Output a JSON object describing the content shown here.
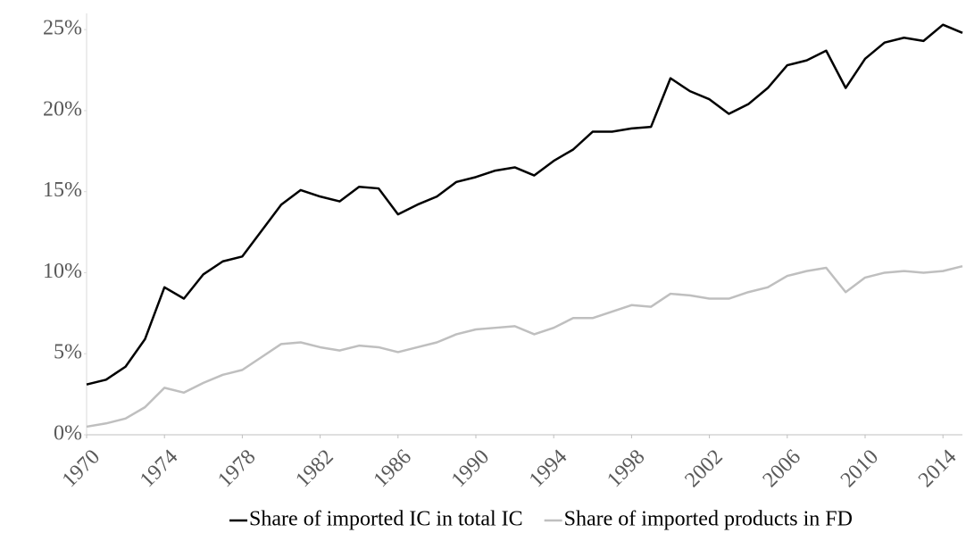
{
  "chart_data": {
    "type": "line",
    "x": [
      1970,
      1971,
      1972,
      1973,
      1974,
      1975,
      1976,
      1977,
      1978,
      1979,
      1980,
      1981,
      1982,
      1983,
      1984,
      1985,
      1986,
      1987,
      1988,
      1989,
      1990,
      1991,
      1992,
      1993,
      1994,
      1995,
      1996,
      1997,
      1998,
      1999,
      2000,
      2001,
      2002,
      2003,
      2004,
      2005,
      2006,
      2007,
      2008,
      2009,
      2010,
      2011,
      2012,
      2013,
      2014,
      2015
    ],
    "series": [
      {
        "name": "Share of imported IC in total IC",
        "color": "#000000",
        "values": [
          3.1,
          3.4,
          4.2,
          5.9,
          9.1,
          8.4,
          9.9,
          10.7,
          11.0,
          12.6,
          14.2,
          15.1,
          14.7,
          14.4,
          15.3,
          15.2,
          13.6,
          14.2,
          14.7,
          15.6,
          15.9,
          16.3,
          16.5,
          16.0,
          16.9,
          17.6,
          18.7,
          18.7,
          18.9,
          19.0,
          22.0,
          21.2,
          20.7,
          19.8,
          20.4,
          21.4,
          22.8,
          23.1,
          23.7,
          21.4,
          23.2,
          24.2,
          24.5,
          24.3,
          25.3,
          24.8
        ]
      },
      {
        "name": "Share of imported products in FD",
        "color": "#bfbfbf",
        "values": [
          0.5,
          0.7,
          1.0,
          1.7,
          2.9,
          2.6,
          3.2,
          3.7,
          4.0,
          4.8,
          5.6,
          5.7,
          5.4,
          5.2,
          5.5,
          5.4,
          5.1,
          5.4,
          5.7,
          6.2,
          6.5,
          6.6,
          6.7,
          6.2,
          6.6,
          7.2,
          7.2,
          7.6,
          8.0,
          7.9,
          8.7,
          8.6,
          8.4,
          8.4,
          8.8,
          9.1,
          9.8,
          10.1,
          10.3,
          8.8,
          9.7,
          10.0,
          10.1,
          10.0,
          10.1,
          10.4
        ]
      }
    ],
    "xlim": [
      1970,
      2015
    ],
    "xticks": [
      1970,
      1974,
      1978,
      1982,
      1986,
      1990,
      1994,
      1998,
      2002,
      2006,
      2010,
      2014
    ],
    "ylim": [
      0,
      26
    ],
    "yticks": [
      {
        "value": 0,
        "label": "0%"
      },
      {
        "value": 5,
        "label": "5%"
      },
      {
        "value": 10,
        "label": "10%"
      },
      {
        "value": 15,
        "label": "15%"
      },
      {
        "value": 20,
        "label": "20%"
      },
      {
        "value": 25,
        "label": "25%"
      }
    ],
    "grid": false,
    "legend": "bottom"
  }
}
